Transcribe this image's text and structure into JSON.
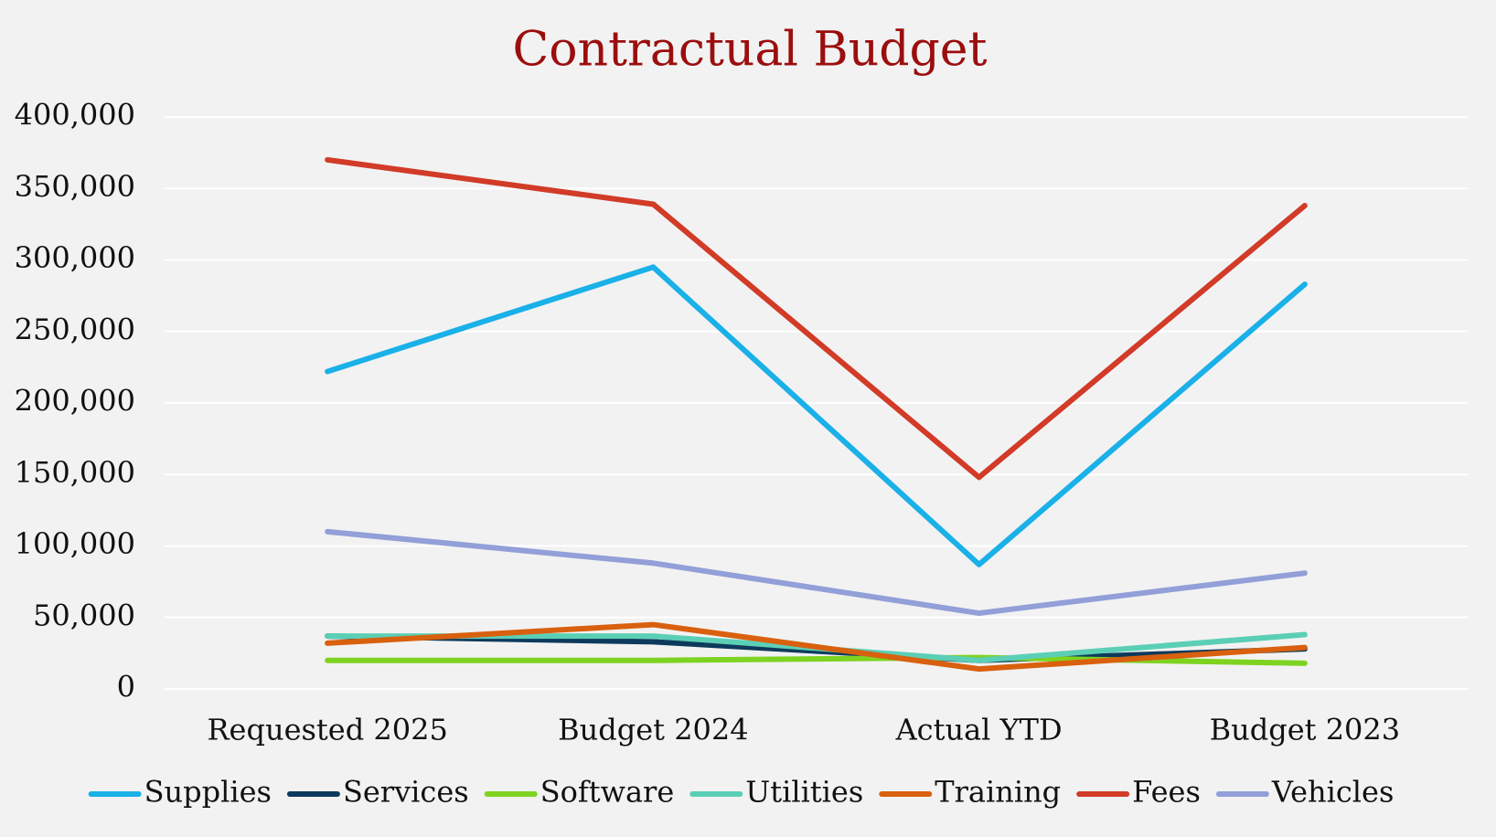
{
  "chart_data": {
    "type": "line",
    "title": "Contractual Budget",
    "categories": [
      "Requested 2025",
      "Budget 2024",
      "Actual YTD",
      "Budget 2023"
    ],
    "series": [
      {
        "name": "Supplies",
        "color": "#1ab0e8",
        "values": [
          222000,
          295000,
          87000,
          283000
        ]
      },
      {
        "name": "Services",
        "color": "#0d3a5c",
        "values": [
          37000,
          33000,
          20000,
          28000
        ]
      },
      {
        "name": "Software",
        "color": "#7ed321",
        "values": [
          20000,
          20000,
          22000,
          18000
        ]
      },
      {
        "name": "Utilities",
        "color": "#5bcfb5",
        "values": [
          37000,
          37000,
          20000,
          38000
        ]
      },
      {
        "name": "Training",
        "color": "#d9600e",
        "values": [
          32000,
          45000,
          14000,
          29000
        ]
      },
      {
        "name": "Fees",
        "color": "#d13b27",
        "values": [
          370000,
          339000,
          148000,
          338000
        ]
      },
      {
        "name": "Vehicles",
        "color": "#929fd8",
        "values": [
          110000,
          88000,
          53000,
          81000
        ]
      }
    ],
    "ylim": [
      0,
      400000
    ],
    "yticks": [
      0,
      {
        "value": 50000,
        "label": "50,000"
      },
      {
        "value": 100000,
        "label": "100,000"
      },
      {
        "value": 150000,
        "label": "150,000"
      },
      {
        "value": 200000,
        "label": "200,000"
      },
      {
        "value": 250000,
        "label": "250,000"
      },
      {
        "value": 300000,
        "label": "300,000"
      },
      {
        "value": 350000,
        "label": "350,000"
      },
      {
        "value": 400000,
        "label": "400,000"
      }
    ],
    "grid": true,
    "legend": "bottom"
  }
}
